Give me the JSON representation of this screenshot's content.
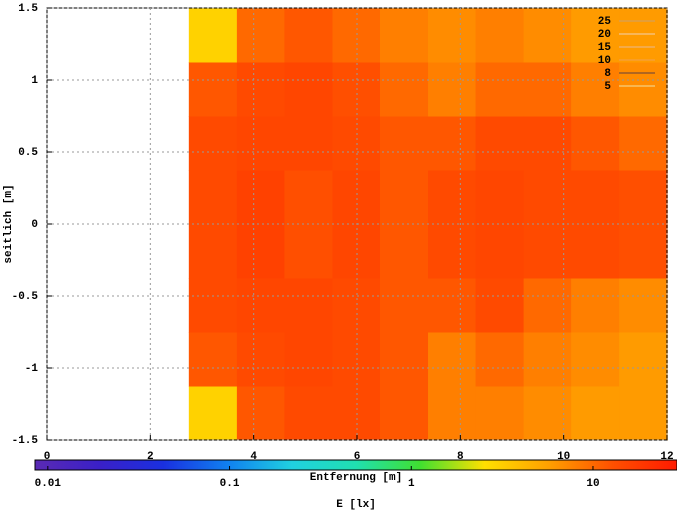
{
  "chart_data": {
    "type": "heatmap",
    "xlabel": "Entfernung [m]",
    "ylabel": "seitlich [m]",
    "xlim": [
      0,
      12
    ],
    "xticks": [
      0,
      2,
      4,
      6,
      8,
      10,
      12
    ],
    "ylim": [
      -1.5,
      1.5
    ],
    "yticks": [
      -1.5,
      -1,
      -0.5,
      0,
      0.5,
      1,
      1.5
    ],
    "grid": true,
    "x": [
      3.21,
      4.14,
      5.06,
      5.99,
      6.91,
      7.84,
      8.76,
      9.69,
      10.61,
      11.54
    ],
    "y": [
      -1.3125,
      -0.9375,
      -0.5625,
      -0.1875,
      0.1875,
      0.5625,
      0.9375,
      1.3125
    ],
    "z": [
      [
        3,
        12,
        14,
        14,
        12,
        8,
        8,
        7,
        6,
        6
      ],
      [
        12,
        14,
        15,
        14,
        12,
        8,
        10,
        8,
        7,
        6
      ],
      [
        14,
        15,
        15,
        14,
        12,
        12,
        14,
        10,
        8,
        7
      ],
      [
        14,
        16,
        13,
        15,
        12,
        14,
        15,
        14,
        14,
        13
      ],
      [
        14,
        16,
        13,
        15,
        12,
        14,
        15,
        14,
        14,
        13
      ],
      [
        14,
        15,
        15,
        14,
        12,
        12,
        14,
        14,
        12,
        10
      ],
      [
        12,
        14,
        15,
        13,
        10,
        8,
        10,
        10,
        8,
        7
      ],
      [
        3,
        10,
        12,
        10,
        8,
        7,
        8,
        7,
        6,
        6
      ]
    ],
    "colorbar_label": "E [lx]",
    "clim": [
      0.0085,
      29
    ],
    "cticks": [
      0.01,
      0.1,
      1,
      10
    ],
    "log_c": true,
    "colormap": [
      "#5a2ab4",
      "#3a20c8",
      "#1a30e0",
      "#1080f0",
      "#20d0e0",
      "#20e0b0",
      "#40e030",
      "#ffe000",
      "#ffa000",
      "#ff5000",
      "#ff1a00"
    ],
    "contours": [
      {
        "level": 25,
        "color": "#c8a070"
      },
      {
        "level": 20,
        "color": "#f0d0b0"
      },
      {
        "level": 15,
        "color": "#e8b890"
      },
      {
        "level": 10,
        "color": "#f0a050"
      },
      {
        "level": 8,
        "color": "#604040"
      },
      {
        "level": 5,
        "color": "#f0e0a0"
      }
    ]
  }
}
